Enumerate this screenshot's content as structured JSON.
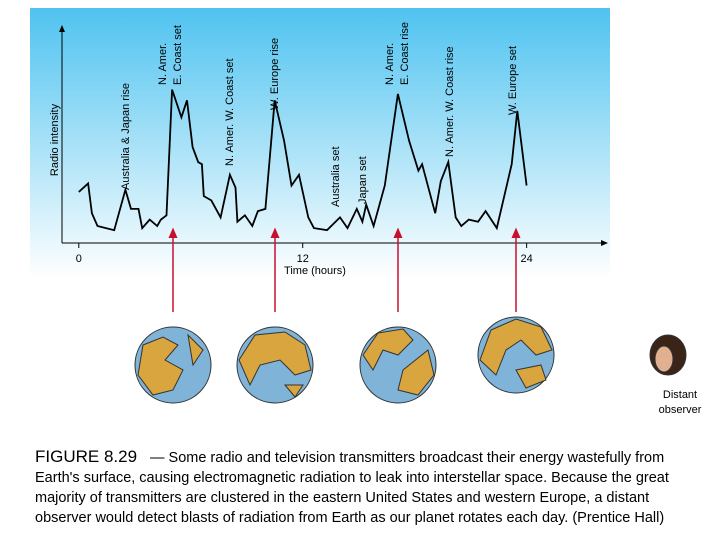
{
  "chart_data": {
    "type": "line",
    "ylabel": "Radio intensity",
    "xlabel": "Time (hours)",
    "x": [
      0,
      0.5,
      0.7,
      1.0,
      1.9,
      2.5,
      2.8,
      3.2,
      3.4,
      3.8,
      4.2,
      4.4,
      4.7,
      5.0,
      5.5,
      5.8,
      6.1,
      6.4,
      6.6,
      6.7,
      7.1,
      7.6,
      8.1,
      8.4,
      8.5,
      8.9,
      9.3,
      9.6,
      10.0,
      10.5,
      11.0,
      11.4,
      11.8,
      12.3,
      12.6,
      13.3,
      14.0,
      14.4,
      14.9,
      15.2,
      15.4,
      15.8,
      16.4,
      17.1,
      17.7,
      18.2,
      18.4,
      19.1,
      19.4,
      19.8,
      20.2,
      20.5,
      20.9,
      21.4,
      21.8,
      22.4,
      23.2,
      23.5,
      24.0
    ],
    "values": [
      24,
      28,
      14,
      8,
      6,
      25,
      16,
      16,
      7,
      11,
      8,
      11,
      13,
      72,
      59,
      67,
      45,
      38,
      37,
      22,
      20,
      12,
      32,
      26,
      10,
      13,
      8,
      15,
      16,
      67,
      48,
      27,
      32,
      12,
      7,
      6,
      12,
      7,
      16,
      10,
      18,
      8,
      27,
      70,
      48,
      34,
      37,
      14,
      29,
      38,
      12,
      8,
      11,
      10,
      15,
      7,
      37,
      62,
      27
    ],
    "color": "#000000",
    "xlim": [
      -0.9,
      28.2
    ],
    "xticks": [
      0,
      12,
      24
    ],
    "ylim": [
      0,
      100
    ],
    "annotations": [
      [
        "Australia & Japan rise"
      ],
      [
        "N. Amer.",
        "E. Coast set"
      ],
      [
        "N. Amer. W. Coast set"
      ],
      [
        "W. Europe rise"
      ],
      [
        "Australia set"
      ],
      [
        "Japan set"
      ],
      [
        "N. Amer.",
        "E. Coast rise"
      ],
      [
        "N. Amer. W. Coast rise"
      ],
      [
        "W. Europe set"
      ]
    ]
  },
  "observer": [
    "Distant",
    "observer"
  ],
  "caption": {
    "label": "FIGURE 8.29",
    "lines": [
      "— Some radio and television transmitters broadcast their energy wastefully from",
      "Earth's surface, causing electromagnetic radiation to leak into interstellar space. Because the great",
      "majority of transmitters are clustered in the eastern United States and western Europe, a distant",
      "observer would detect blasts of radiation from Earth as our planet rotates each day. (Prentice Hall)"
    ]
  }
}
